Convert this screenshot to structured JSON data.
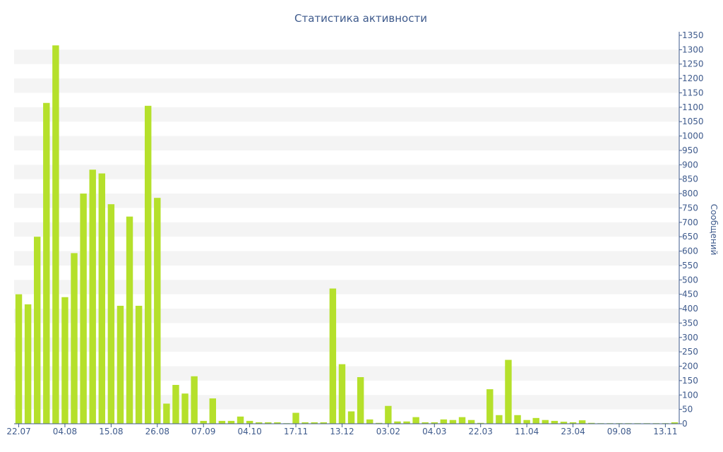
{
  "chart_data": {
    "type": "bar",
    "title": "Статистика активности",
    "ylabel": "Сообщений",
    "xlabel": "",
    "ylim": [
      0,
      1350
    ],
    "y_tick_step": 50,
    "grid": "alternating horizontal bands",
    "y_axis_side": "right",
    "colors": {
      "bar": "#b5e02b",
      "text": "#3e5a8c",
      "band": "#f4f4f4",
      "axis": "#3e5a8c"
    },
    "x_tick_labels": [
      {
        "index": 0,
        "label": "22.07"
      },
      {
        "index": 5,
        "label": "04.08"
      },
      {
        "index": 10,
        "label": "15.08"
      },
      {
        "index": 15,
        "label": "26.08"
      },
      {
        "index": 20,
        "label": "07.09"
      },
      {
        "index": 25,
        "label": "04.10"
      },
      {
        "index": 30,
        "label": "17.11"
      },
      {
        "index": 35,
        "label": "13.12"
      },
      {
        "index": 40,
        "label": "03.02"
      },
      {
        "index": 45,
        "label": "04.03"
      },
      {
        "index": 50,
        "label": "22.03"
      },
      {
        "index": 55,
        "label": "11.04"
      },
      {
        "index": 60,
        "label": "23.04"
      },
      {
        "index": 65,
        "label": "09.08"
      },
      {
        "index": 70,
        "label": "13.11"
      }
    ],
    "values": [
      450,
      415,
      650,
      1115,
      1315,
      440,
      593,
      800,
      883,
      870,
      763,
      410,
      720,
      410,
      1105,
      785,
      70,
      135,
      105,
      165,
      10,
      88,
      10,
      10,
      25,
      10,
      5,
      5,
      5,
      2,
      38,
      5,
      5,
      5,
      470,
      207,
      43,
      162,
      15,
      3,
      62,
      8,
      8,
      23,
      5,
      5,
      15,
      13,
      23,
      13,
      3,
      120,
      30,
      222,
      30,
      13,
      20,
      13,
      10,
      7,
      5,
      12,
      3,
      2,
      2,
      2,
      2,
      2,
      2,
      2,
      2,
      5
    ]
  }
}
